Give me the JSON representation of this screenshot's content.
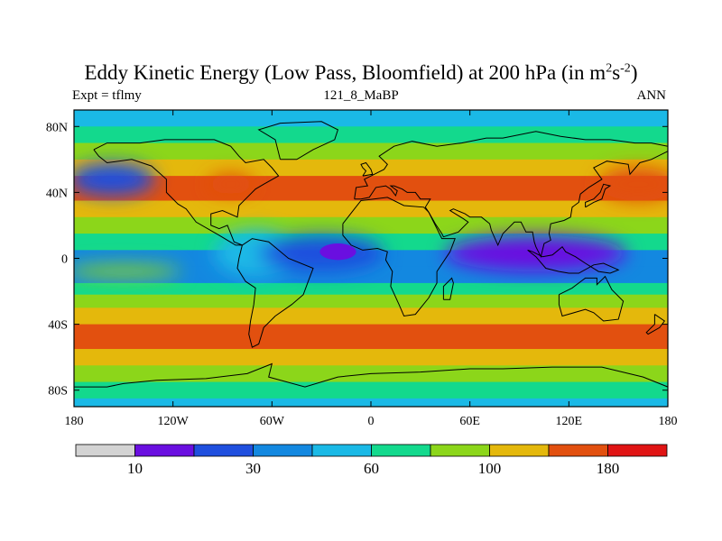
{
  "title": {
    "main": "Eddy Kinetic Energy (Low Pass, Bloomfield) at 200 hPa (in m",
    "sup1": "2",
    "mid": "s",
    "sup2": "-2",
    "close": ")"
  },
  "subtitles": {
    "left": "Expt = tflmy",
    "center": "121_8_MaBP",
    "right": "ANN"
  },
  "chart_data": {
    "type": "heatmap",
    "map_projection": "cylindrical equidistant",
    "xlim": [
      -180,
      180
    ],
    "ylim": [
      -90,
      90
    ],
    "x_ticks": [
      {
        "value": -180,
        "label": "180"
      },
      {
        "value": -120,
        "label": "120W"
      },
      {
        "value": -60,
        "label": "60W"
      },
      {
        "value": 0,
        "label": "0"
      },
      {
        "value": 60,
        "label": "60E"
      },
      {
        "value": 120,
        "label": "120E"
      },
      {
        "value": 180,
        "label": "180"
      }
    ],
    "y_ticks": [
      {
        "value": 80,
        "label": "80N"
      },
      {
        "value": 40,
        "label": "40N"
      },
      {
        "value": 0,
        "label": "0"
      },
      {
        "value": -40,
        "label": "40S"
      },
      {
        "value": -80,
        "label": "80S"
      }
    ],
    "colorbar": {
      "colors": [
        "#d3d3d3",
        "#6a0fe0",
        "#1f4fde",
        "#1388e0",
        "#1ab9e6",
        "#13d98d",
        "#8cd61a",
        "#e4b80c",
        "#e2500f",
        "#e01414"
      ],
      "labels": [
        {
          "value": 10,
          "label": "10",
          "after_box": 1
        },
        {
          "value": 30,
          "label": "30",
          "after_box": 3
        },
        {
          "value": 60,
          "label": "60",
          "after_box": 5
        },
        {
          "value": 100,
          "label": "100",
          "after_box": 7
        },
        {
          "value": 180,
          "label": "180",
          "after_box": 9
        }
      ]
    },
    "field_levels_by_latitude": [
      {
        "lat": 90,
        "level": 4
      },
      {
        "lat": 84,
        "level": 4
      },
      {
        "lat": 80,
        "level": 5
      },
      {
        "lat": 70,
        "level": 6
      },
      {
        "lat": 60,
        "level": 7
      },
      {
        "lat": 50,
        "level": 8
      },
      {
        "lat": 35,
        "level": 7
      },
      {
        "lat": 25,
        "level": 6
      },
      {
        "lat": 15,
        "level": 5
      },
      {
        "lat": 5,
        "level": 3
      },
      {
        "lat": -5,
        "level": 3
      },
      {
        "lat": -15,
        "level": 5
      },
      {
        "lat": -22,
        "level": 6
      },
      {
        "lat": -30,
        "level": 7
      },
      {
        "lat": -40,
        "level": 8
      },
      {
        "lat": -55,
        "level": 7
      },
      {
        "lat": -65,
        "level": 6
      },
      {
        "lat": -75,
        "level": 5
      },
      {
        "lat": -85,
        "level": 4
      },
      {
        "lat": -90,
        "level": 4
      }
    ],
    "features": [
      {
        "region": "central Pacific 0N",
        "level": 6
      },
      {
        "region": "east Pacific 0N",
        "level": 4
      },
      {
        "region": "Atlantic-Africa 0N",
        "level": 2
      },
      {
        "region": "equatorial Atlantic core",
        "level": 1
      },
      {
        "region": "Indian Ocean-Indonesia 0N",
        "level": 2
      },
      {
        "region": "North Pacific 40N (west)",
        "level": 8
      },
      {
        "region": "North Pacific 40N (east)",
        "level": 8
      },
      {
        "region": "North Atlantic 40N",
        "level": 8
      }
    ]
  }
}
